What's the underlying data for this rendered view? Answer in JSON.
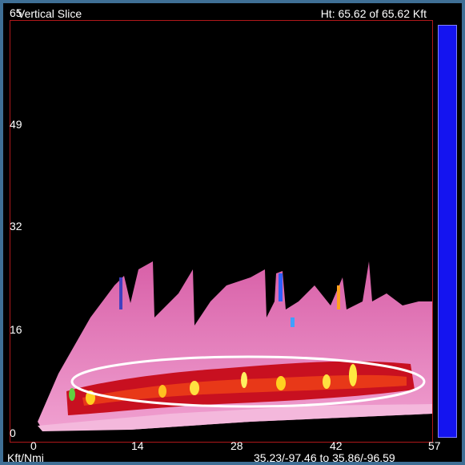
{
  "window": {
    "title": "Vertical Slice",
    "height_readout": "Ht:  65.62 of  65.62 Kft"
  },
  "axes": {
    "y_ticks": [
      "65",
      "49",
      "32",
      "16",
      "0"
    ],
    "x_ticks": [
      "0",
      "14",
      "28",
      "42",
      "57"
    ],
    "units_label": "Kft/Nmi",
    "coordinates": "35.23/-97.46 to 35.86/-96.59"
  },
  "colors": {
    "background": "#3f6f95",
    "plot_border": "#b0181a",
    "colorbar": "#1414f0",
    "highlight_ellipse": "#ffffff"
  }
}
